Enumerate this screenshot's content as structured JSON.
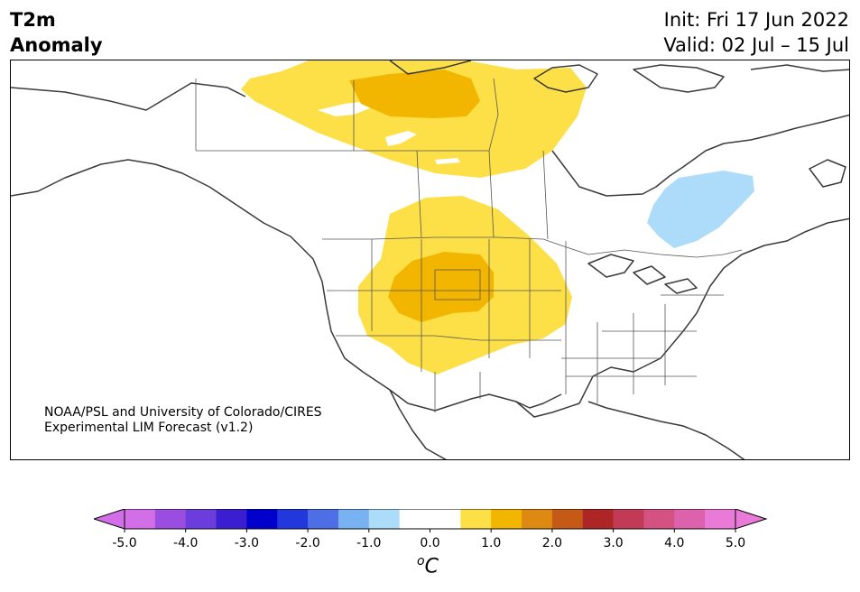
{
  "title": {
    "line1": "T2m",
    "line2": "Anomaly"
  },
  "header_right": {
    "init": "Init: Fri 17 Jun 2022",
    "valid": "Valid: 02 Jul – 15 Jul"
  },
  "credit": {
    "line1": "NOAA/PSL and University of Colorado/CIRES",
    "line2": "Experimental LIM Forecast (v1.2)"
  },
  "colorbar": {
    "ticks": [
      "-5.0",
      "-4.0",
      "-3.0",
      "-2.0",
      "-1.0",
      "0.0",
      "1.0",
      "2.0",
      "3.0",
      "4.0",
      "5.0"
    ],
    "unit_base": "C",
    "unit_sup": "o",
    "colors": [
      "#d36ee9",
      "#9a4ee0",
      "#6a3ddc",
      "#3c1ed2",
      "#0000cd",
      "#2238dc",
      "#4d6ee6",
      "#79b2f2",
      "#acdcfa",
      "#ffffff",
      "#ffffff",
      "#fde047",
      "#f2b500",
      "#de8a12",
      "#c55a17",
      "#ae2526",
      "#c23a55",
      "#d35282",
      "#dd62ad",
      "#e97ad8"
    ]
  },
  "anomaly_regions": [
    {
      "name": "canada-warm",
      "level": "+0.5 to +1.0",
      "color": "#fde047"
    },
    {
      "name": "hudson-warm-core",
      "level": "+1.0 to +1.5",
      "color": "#f2b500"
    },
    {
      "name": "plains-warm",
      "level": "+0.5 to +1.0",
      "color": "#fde047"
    },
    {
      "name": "rockies-warm-core",
      "level": "+1.0 to +1.5",
      "color": "#f2b500"
    },
    {
      "name": "quebec-cool",
      "level": "-1.0 to -0.5",
      "color": "#acdcfa"
    }
  ]
}
